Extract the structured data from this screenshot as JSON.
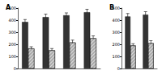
{
  "chart_data": [
    {
      "type": "bar",
      "title": "A",
      "categories": [
        null,
        null,
        null,
        null
      ],
      "series": [
        {
          "color": "#333333",
          "values": [
            385,
            425,
            440,
            465
          ],
          "errors": [
            20,
            25,
            20,
            25
          ]
        },
        {
          "color": "#aaaaaa",
          "values": [
            165,
            150,
            215,
            250
          ],
          "errors": [
            15,
            15,
            20,
            20
          ]
        }
      ],
      "ylim": [
        0,
        500
      ],
      "yticks": [
        0,
        100,
        200,
        300,
        400,
        500
      ],
      "grid": false
    },
    {
      "type": "bar",
      "title": "B",
      "categories": [
        null,
        null
      ],
      "series": [
        {
          "color": "#333333",
          "values": [
            430,
            445
          ],
          "errors": [
            25,
            25
          ]
        },
        {
          "color": "#aaaaaa",
          "values": [
            190,
            210
          ],
          "errors": [
            15,
            20
          ]
        }
      ],
      "ylim": [
        0,
        500
      ],
      "yticks": [
        0,
        100,
        200,
        300,
        400,
        500
      ],
      "grid": false
    }
  ]
}
